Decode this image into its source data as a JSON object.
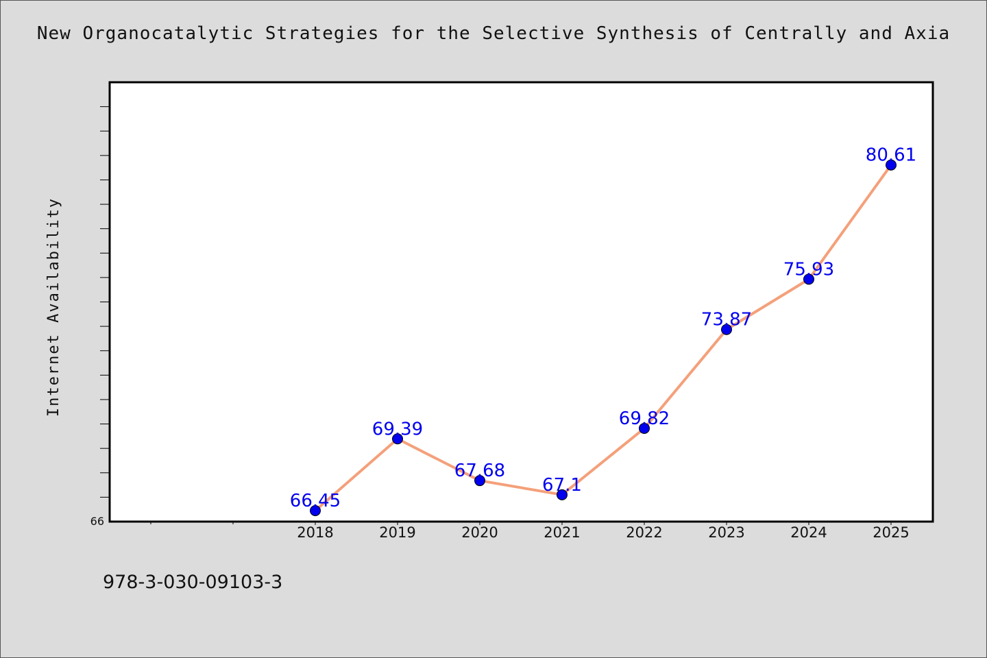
{
  "chart_data": {
    "type": "line",
    "title": "New Organocatalytic Strategies for the Selective Synthesis of Centrally and Axia",
    "xlabel": "",
    "ylabel": "Internet Availability",
    "categories": [
      "2018",
      "2019",
      "2020",
      "2021",
      "2022",
      "2023",
      "2024",
      "2025"
    ],
    "series": [
      {
        "values": [
          66.45,
          69.39,
          67.68,
          67.1,
          69.82,
          73.87,
          75.93,
          80.61
        ]
      }
    ],
    "data_labels": [
      "66.45",
      "69.39",
      "67.68",
      "67.1",
      "69.82",
      "73.87",
      "75.93",
      "80.61"
    ],
    "ylim": [
      66,
      84
    ],
    "y_tick_labels": [
      "66"
    ],
    "grid": false,
    "legend": "none",
    "colors": {
      "line": "#f4a07a",
      "marker": "#0000ee",
      "label": "#0000ee"
    }
  },
  "footer": {
    "isbn": "978-3-030-09103-3"
  }
}
